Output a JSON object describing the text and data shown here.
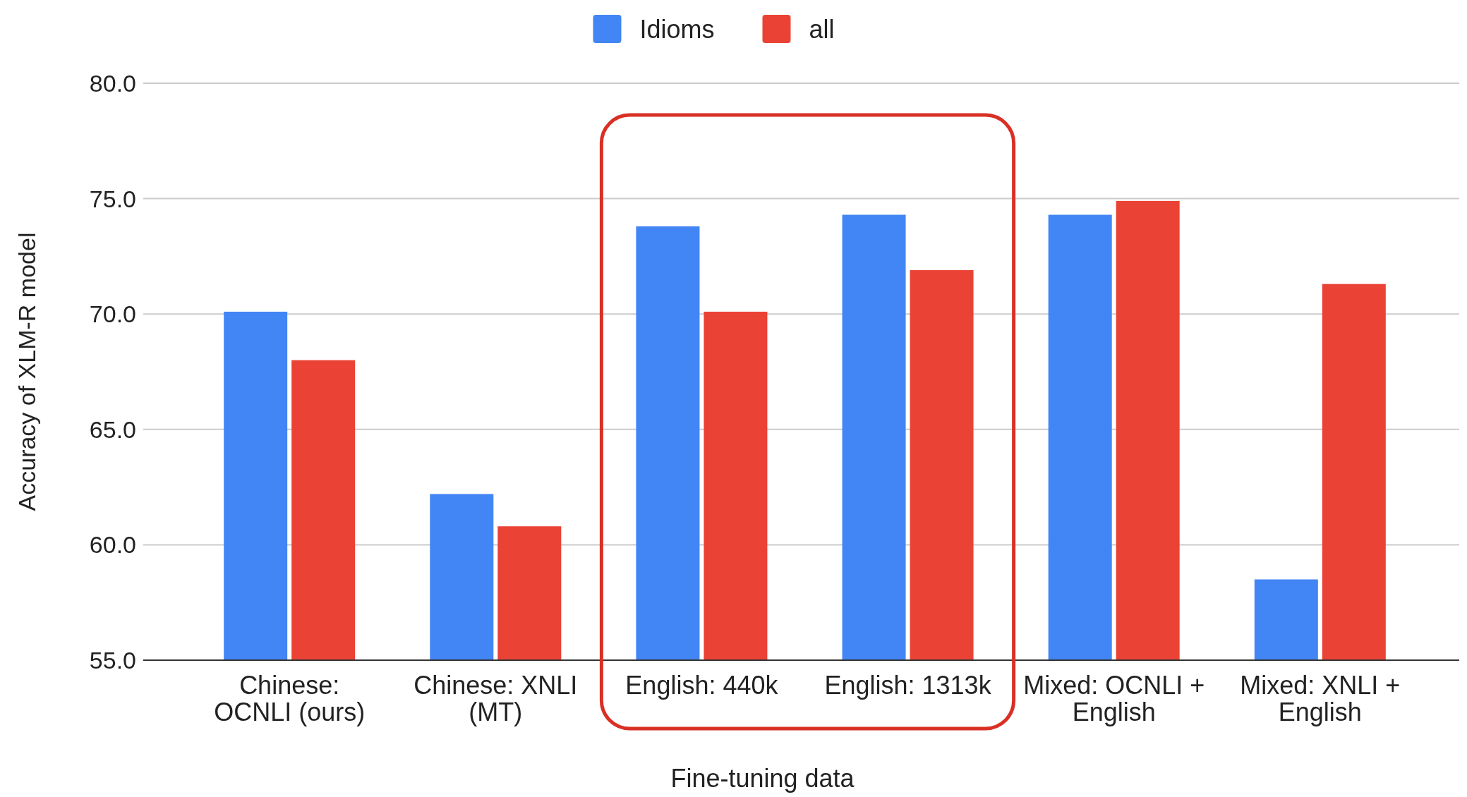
{
  "chart_data": {
    "type": "bar",
    "xlabel": "Fine-tuning data",
    "ylabel": "Accuracy of XLM-R model",
    "categories": [
      "Chinese: OCNLI (ours)",
      "Chinese: XNLI (MT)",
      "English: 440k",
      "English: 1313k",
      "Mixed: OCNLI + English",
      "Mixed: XNLI + English"
    ],
    "series": [
      {
        "name": "Idioms",
        "color": "#4285f4",
        "values": [
          70.1,
          62.2,
          73.8,
          74.3,
          74.3,
          58.5
        ]
      },
      {
        "name": "all",
        "color": "#ea4335",
        "values": [
          68.0,
          60.8,
          70.1,
          71.9,
          74.9,
          71.3
        ]
      }
    ],
    "ylim": [
      55,
      80
    ],
    "yticks": [
      {
        "value": 55,
        "label": "55.0"
      },
      {
        "value": 60,
        "label": "60.0"
      },
      {
        "value": 65,
        "label": "65.0"
      },
      {
        "value": 70,
        "label": "70.0"
      },
      {
        "value": 75,
        "label": "75.0"
      },
      {
        "value": 80,
        "label": "80.0"
      }
    ],
    "grid": "y",
    "legend": "top"
  }
}
